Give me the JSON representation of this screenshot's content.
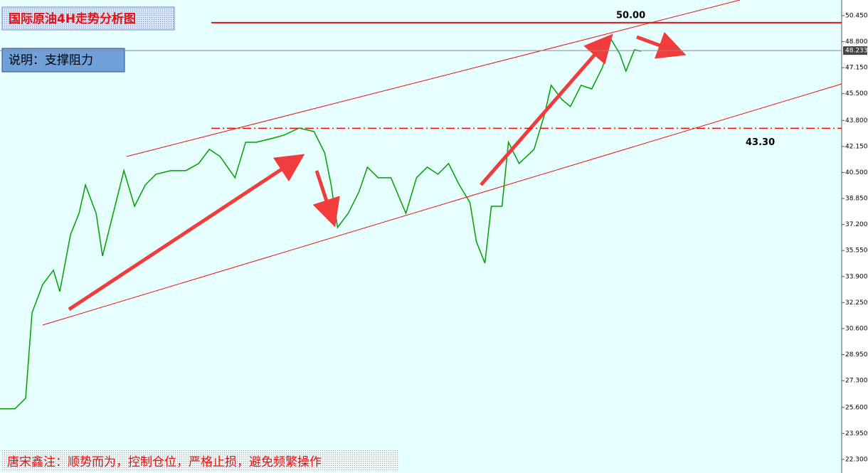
{
  "chart_data": {
    "type": "line",
    "title": "国际原油4H走势分析图",
    "subtitle": "说明：支撑阻力",
    "footnote": "唐宋鑫注：顺势而为，控制仓位，严格止损，避免频繁操作",
    "x": [
      0,
      7,
      12,
      15,
      20,
      25,
      28,
      33,
      37,
      40,
      45,
      48,
      53,
      58,
      63,
      68,
      73,
      80,
      87,
      93,
      98,
      103,
      110,
      115,
      120,
      127,
      133,
      140,
      147,
      152,
      155,
      158,
      163,
      168,
      172,
      177,
      183,
      190,
      195,
      200,
      205,
      210,
      215,
      220,
      223,
      227,
      230,
      235,
      238,
      243,
      250,
      255,
      258,
      263,
      267,
      272,
      277,
      282,
      286,
      290,
      293,
      297,
      300
    ],
    "xlim": [
      0,
      394
    ],
    "series": [
      {
        "name": "price",
        "color": "#00a000",
        "values": [
          25.51,
          25.51,
          26.18,
          31.6,
          33.4,
          34.3,
          32.95,
          36.56,
          37.91,
          39.71,
          37.91,
          35.2,
          37.91,
          40.62,
          38.36,
          39.71,
          40.39,
          40.62,
          40.62,
          41.07,
          41.97,
          41.52,
          40.17,
          42.42,
          42.42,
          42.65,
          42.87,
          43.32,
          43.1,
          41.74,
          39.71,
          37.01,
          37.91,
          39.26,
          40.84,
          40.17,
          40.17,
          37.91,
          40.17,
          40.84,
          40.39,
          41.07,
          39.71,
          38.59,
          36.11,
          34.75,
          38.36,
          38.36,
          42.42,
          41.07,
          41.97,
          44.23,
          46.03,
          45.13,
          44.68,
          46.03,
          45.8,
          47.16,
          48.96,
          48.06,
          46.93,
          48.28,
          48.19
        ]
      }
    ],
    "ylim": [
      21.44,
      51.44
    ],
    "yticks": [
      {
        "value": 50.45,
        "label": "50.450"
      },
      {
        "value": 48.8,
        "label": "48.800"
      },
      {
        "value": 47.15,
        "label": "47.150"
      },
      {
        "value": 45.5,
        "label": "45.500"
      },
      {
        "value": 43.8,
        "label": "43.800"
      },
      {
        "value": 42.15,
        "label": "42.150"
      },
      {
        "value": 40.5,
        "label": "40.500"
      },
      {
        "value": 38.85,
        "label": "38.850"
      },
      {
        "value": 37.2,
        "label": "37.200"
      },
      {
        "value": 35.55,
        "label": "35.550"
      },
      {
        "value": 33.9,
        "label": "33.900"
      },
      {
        "value": 32.25,
        "label": "32.250"
      },
      {
        "value": 30.6,
        "label": "30.600"
      },
      {
        "value": 28.95,
        "label": "28.950"
      },
      {
        "value": 27.3,
        "label": "27.300"
      },
      {
        "value": 25.6,
        "label": "25.600"
      },
      {
        "value": 23.95,
        "label": "23.950"
      },
      {
        "value": 22.3,
        "label": "22.300"
      }
    ],
    "current_price": {
      "value": 48.233,
      "label": "48.233"
    },
    "levels": [
      {
        "value": 50.0,
        "label": "50.00",
        "style": "solid"
      },
      {
        "value": 43.3,
        "label": "43.30",
        "style": "dashdot"
      }
    ]
  }
}
